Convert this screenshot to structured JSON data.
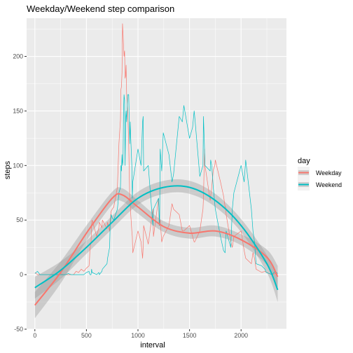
{
  "chart_data": {
    "type": "line",
    "title": "Weekday/Weekend step comparison",
    "xlabel": "interval",
    "ylabel": "steps",
    "xlim": [
      -80,
      2440
    ],
    "ylim": [
      -50,
      235
    ],
    "x_ticks": [
      0,
      500,
      1000,
      1500,
      2000
    ],
    "y_ticks": [
      -50,
      0,
      50,
      100,
      150,
      200
    ],
    "grid": true,
    "legend": {
      "title": "day",
      "placement": "right"
    },
    "series": [
      {
        "name": "Weekday",
        "color": "#F8766D",
        "x": [
          0,
          25,
          50,
          75,
          100,
          125,
          150,
          175,
          200,
          225,
          250,
          275,
          300,
          325,
          350,
          375,
          400,
          425,
          450,
          475,
          500,
          525,
          530,
          535,
          545,
          550,
          555,
          600,
          620,
          625,
          650,
          655,
          700,
          705,
          725,
          730,
          740,
          750,
          765,
          800,
          815,
          830,
          835,
          840,
          845,
          850,
          855,
          860,
          865,
          870,
          875,
          880,
          885,
          890,
          900,
          910,
          920,
          925,
          930,
          940,
          945,
          950,
          1000,
          1030,
          1045,
          1050,
          1055,
          1100,
          1145,
          1150,
          1200,
          1205,
          1210,
          1215,
          1230,
          1245,
          1300,
          1330,
          1345,
          1400,
          1430,
          1445,
          1500,
          1530,
          1545,
          1550,
          1600,
          1630,
          1635,
          1645,
          1650,
          1700,
          1705,
          1715,
          1730,
          1745,
          1750,
          1800,
          1830,
          1845,
          1850,
          1855,
          1900,
          1915,
          1930,
          2000,
          2030,
          2045,
          2100,
          2115,
          2130,
          2145,
          2200,
          2230,
          2245,
          2300,
          2330,
          2355
        ],
        "y": [
          2,
          0,
          0,
          0,
          0,
          0,
          0,
          0,
          0,
          0,
          1,
          0,
          0,
          0,
          0,
          0,
          3,
          2,
          5,
          3,
          6,
          8,
          14,
          24,
          30,
          46,
          50,
          35,
          43,
          48,
          43,
          50,
          42,
          48,
          40,
          50,
          58,
          60,
          62,
          80,
          120,
          142,
          170,
          172,
          185,
          230,
          220,
          210,
          200,
          205,
          180,
          182,
          192,
          165,
          150,
          120,
          70,
          65,
          55,
          40,
          35,
          20,
          40,
          30,
          15,
          25,
          45,
          28,
          60,
          35,
          70,
          45,
          48,
          50,
          30,
          35,
          45,
          65,
          60,
          55,
          40,
          40,
          45,
          35,
          30,
          30,
          40,
          60,
          70,
          115,
          100,
          68,
          72,
          80,
          96,
          100,
          105,
          85,
          72,
          62,
          62,
          55,
          30,
          25,
          35,
          40,
          22,
          15,
          10,
          20,
          15,
          5,
          2,
          3,
          2,
          0,
          1,
          0
        ]
      },
      {
        "name": "Weekend",
        "color": "#00BFC4",
        "x": [
          0,
          25,
          50,
          75,
          100,
          125,
          150,
          175,
          200,
          225,
          250,
          275,
          300,
          325,
          350,
          375,
          400,
          425,
          450,
          475,
          500,
          525,
          530,
          535,
          545,
          550,
          555,
          600,
          620,
          625,
          650,
          655,
          700,
          705,
          725,
          730,
          740,
          750,
          765,
          800,
          815,
          830,
          835,
          840,
          845,
          850,
          855,
          860,
          865,
          870,
          875,
          880,
          885,
          890,
          900,
          910,
          920,
          925,
          930,
          940,
          945,
          950,
          1000,
          1030,
          1045,
          1050,
          1055,
          1100,
          1145,
          1150,
          1200,
          1205,
          1210,
          1215,
          1230,
          1245,
          1300,
          1330,
          1345,
          1400,
          1430,
          1445,
          1500,
          1530,
          1545,
          1550,
          1600,
          1630,
          1635,
          1645,
          1650,
          1700,
          1705,
          1715,
          1730,
          1745,
          1750,
          1800,
          1830,
          1845,
          1850,
          1855,
          1900,
          1915,
          1930,
          2000,
          2030,
          2045,
          2100,
          2115,
          2130,
          2145,
          2200,
          2230,
          2245,
          2300,
          2330,
          2355
        ],
        "y": [
          1,
          3,
          0,
          0,
          0,
          0,
          0,
          0,
          0,
          0,
          0,
          0,
          0,
          1,
          0,
          0,
          0,
          0,
          0,
          0,
          2,
          3,
          1,
          0,
          0,
          5,
          2,
          0,
          2,
          0,
          3,
          5,
          10,
          15,
          25,
          45,
          55,
          52,
          50,
          60,
          75,
          80,
          100,
          95,
          110,
          100,
          105,
          150,
          165,
          160,
          100,
          140,
          150,
          140,
          165,
          165,
          120,
          140,
          125,
          100,
          70,
          85,
          115,
          100,
          140,
          145,
          95,
          100,
          45,
          60,
          70,
          55,
          45,
          115,
          95,
          130,
          110,
          85,
          92,
          145,
          140,
          155,
          125,
          135,
          150,
          145,
          90,
          100,
          145,
          115,
          100,
          95,
          105,
          100,
          80,
          65,
          60,
          35,
          22,
          20,
          32,
          40,
          25,
          60,
          75,
          100,
          85,
          105,
          60,
          40,
          30,
          10,
          8,
          5,
          2,
          0,
          3,
          1
        ]
      }
    ],
    "smooth": [
      {
        "name": "Weekday",
        "color": "#F8766D",
        "x": [
          0,
          250,
          500,
          750,
          850,
          1000,
          1250,
          1500,
          1750,
          2000,
          2250,
          2355
        ],
        "y": [
          -28,
          2,
          38,
          70,
          73,
          62,
          44,
          38,
          40,
          32,
          16,
          -2
        ],
        "ci": [
          12,
          10,
          7,
          6,
          6,
          6,
          5,
          5,
          5,
          5,
          7,
          10
        ]
      },
      {
        "name": "Weekend",
        "color": "#00BFC4",
        "x": [
          0,
          250,
          500,
          750,
          1000,
          1250,
          1500,
          1750,
          2000,
          2250,
          2355
        ],
        "y": [
          -12,
          4,
          25,
          48,
          70,
          80,
          80,
          68,
          45,
          10,
          -14
        ],
        "ci": [
          10,
          8,
          6,
          6,
          6,
          6,
          6,
          6,
          6,
          8,
          11
        ]
      }
    ]
  }
}
